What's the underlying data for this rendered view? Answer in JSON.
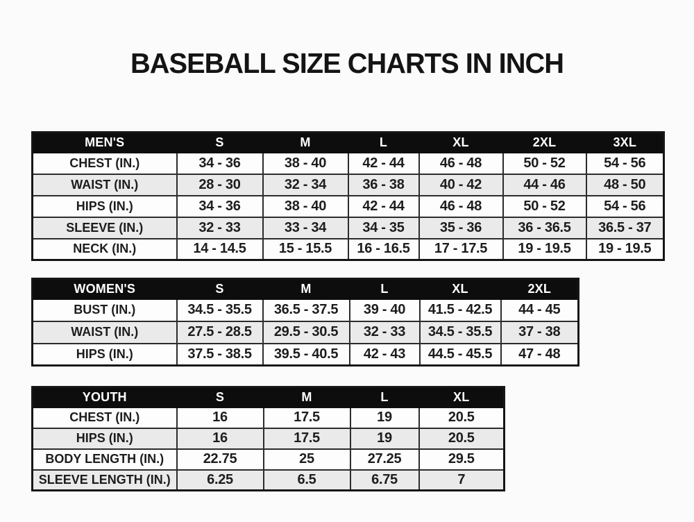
{
  "page": {
    "title": "BASEBALL SIZE CHARTS IN INCH"
  },
  "colors": {
    "header_bg": "#0d0d0d",
    "header_text": "#ffffff",
    "row_bg": "#fdfdfd",
    "row_alt_bg": "#eaeaea",
    "border": "#2c2c2c",
    "title_text": "#141414"
  },
  "chart_data": [
    {
      "type": "table",
      "id": "mens",
      "title": "MEN'S",
      "columns": [
        "MEN'S",
        "S",
        "M",
        "L",
        "XL",
        "2XL",
        "3XL"
      ],
      "rows": [
        [
          "CHEST (IN.)",
          "34 - 36",
          "38 - 40",
          "42 - 44",
          "46 - 48",
          "50 - 52",
          "54 - 56"
        ],
        [
          "WAIST (IN.)",
          "28 - 30",
          "32 - 34",
          "36 - 38",
          "40 - 42",
          "44 - 46",
          "48 - 50"
        ],
        [
          "HIPS (IN.)",
          "34 - 36",
          "38 - 40",
          "42 - 44",
          "46 - 48",
          "50 - 52",
          "54 - 56"
        ],
        [
          "SLEEVE (IN.)",
          "32 - 33",
          "33 - 34",
          "34 - 35",
          "35 - 36",
          "36 - 36.5",
          "36.5 - 37"
        ],
        [
          "NECK (IN.)",
          "14 - 14.5",
          "15 - 15.5",
          "16 - 16.5",
          "17 - 17.5",
          "19 - 19.5",
          "19 - 19.5"
        ]
      ]
    },
    {
      "type": "table",
      "id": "womens",
      "title": "WOMEN'S",
      "columns": [
        "WOMEN'S",
        "S",
        "M",
        "L",
        "XL",
        "2XL"
      ],
      "rows": [
        [
          "BUST (IN.)",
          "34.5 - 35.5",
          "36.5 - 37.5",
          "39 - 40",
          "41.5 - 42.5",
          "44 - 45"
        ],
        [
          "WAIST (IN.)",
          "27.5 - 28.5",
          "29.5 - 30.5",
          "32 - 33",
          "34.5 - 35.5",
          "37 - 38"
        ],
        [
          "HIPS (IN.)",
          "37.5 - 38.5",
          "39.5 - 40.5",
          "42 - 43",
          "44.5 - 45.5",
          "47 - 48"
        ]
      ]
    },
    {
      "type": "table",
      "id": "youth",
      "title": "YOUTH",
      "columns": [
        "YOUTH",
        "S",
        "M",
        "L",
        "XL"
      ],
      "rows": [
        [
          "CHEST (IN.)",
          "16",
          "17.5",
          "19",
          "20.5"
        ],
        [
          "HIPS (IN.)",
          "16",
          "17.5",
          "19",
          "20.5"
        ],
        [
          "BODY LENGTH (IN.)",
          "22.75",
          "25",
          "27.25",
          "29.5"
        ],
        [
          "SLEEVE LENGTH (IN.)",
          "6.25",
          "6.5",
          "6.75",
          "7"
        ]
      ]
    }
  ]
}
